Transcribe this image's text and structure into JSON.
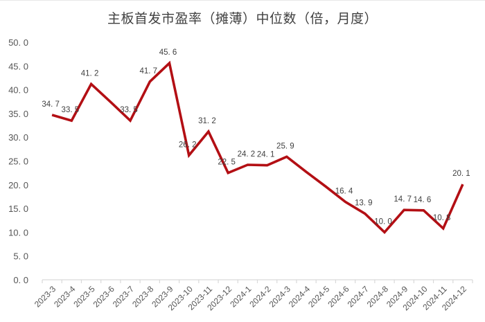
{
  "chart_data": {
    "type": "line",
    "title": "主板首发市盈率（摊薄）中位数（倍，月度）",
    "xlabel": "",
    "ylabel": "",
    "ylim": [
      0,
      50
    ],
    "ytick_step": 5,
    "ytick_labels": [
      "0.0",
      "5.0",
      "10.0",
      "15.0",
      "20.0",
      "25.0",
      "30.0",
      "35.0",
      "40.0",
      "45.0",
      "50.0"
    ],
    "grid": false,
    "legend": "none",
    "categories": [
      "2023-3",
      "2023-4",
      "2023-5",
      "2023-6",
      "2023-7",
      "2023-8",
      "2023-9",
      "2023-10",
      "2023-11",
      "2023-12",
      "2024-1",
      "2024-2",
      "2024-3",
      "2024-4",
      "2024-5",
      "2024-6",
      "2024-7",
      "2024-8",
      "2024-9",
      "2024-10",
      "2024-11",
      "2024-12"
    ],
    "series": [
      {
        "name": "主板首发市盈率（摊薄）中位数",
        "color": "#b30f14",
        "values": [
          34.7,
          33.5,
          41.2,
          37.4,
          33.5,
          41.7,
          45.6,
          26.2,
          31.2,
          22.5,
          24.2,
          24.1,
          25.9,
          22.7,
          19.6,
          16.4,
          13.9,
          10.0,
          14.7,
          14.6,
          10.8,
          20.1
        ],
        "data_labels": [
          "34.7",
          "33.5",
          "41.2",
          "",
          "33.5",
          "41.7",
          "45.6",
          "26.2",
          "31.2",
          "22.5",
          "24.2",
          "24.1",
          "25.9",
          "",
          "",
          "16.4",
          "13.9",
          "10.0",
          "14.7",
          "14.6",
          "10.8",
          "20.1"
        ]
      }
    ]
  },
  "colors": {
    "line": "#b30f14",
    "axis": "#d9d9d9",
    "text": "#404040"
  }
}
